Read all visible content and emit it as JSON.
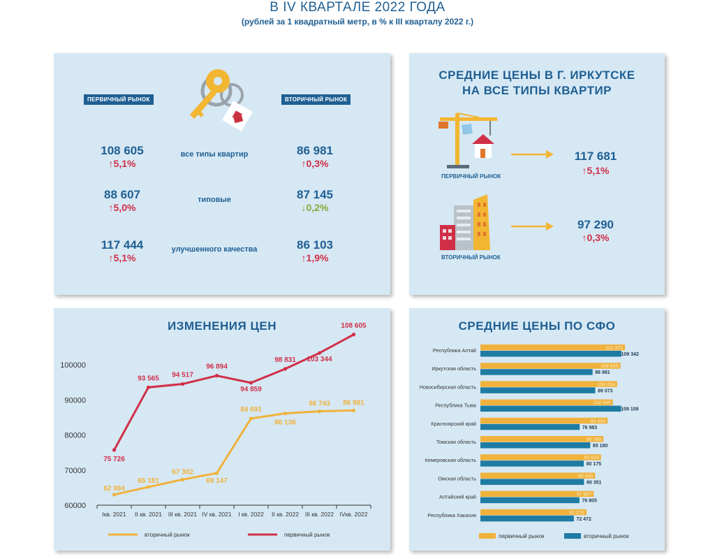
{
  "header": {
    "title": "В IV КВАРТАЛЕ 2022 ГОДА",
    "subtitle": "(рублей за 1 квадратный метр, в % к III кварталу 2022 г.)"
  },
  "panel1": {
    "primary_label": "ПЕРВИЧНЫЙ РЫНОК",
    "secondary_label": "ВТОРИЧНЫЙ РЫНОК",
    "rows": [
      {
        "label": "все типы квартир",
        "primary_value": "108 605",
        "primary_change": "↑5,1%",
        "secondary_value": "86 981",
        "secondary_change": "↑0,3%"
      },
      {
        "label": "типовые",
        "primary_value": "88 607",
        "primary_change": "↑5,0%",
        "secondary_value": "87 145",
        "secondary_change": "↓0,2%"
      },
      {
        "label": "улучшенного качества",
        "primary_value": "117 444",
        "primary_change": "↑5,1%",
        "secondary_value": "86 103",
        "secondary_change": "↑1,9%"
      }
    ]
  },
  "panel2": {
    "title_line1": "СРЕДНИЕ  ЦЕНЫ  В  Г.  ИРКУТСКЕ",
    "title_line2": "НА ВСЕ ТИПЫ КВАРТИР",
    "primary": {
      "label": "ПЕРВИЧНЫЙ РЫНОК",
      "value": "117 681",
      "change": "↑5,1%"
    },
    "secondary": {
      "label": "ВТОРИЧНЫЙ РЫНОК",
      "value": "97 290",
      "change": "↑0,3%"
    }
  },
  "chart_data": [
    {
      "type": "line",
      "title": "ИЗМЕНЕНИЯ ЦЕН",
      "categories": [
        "Iкв. 2021",
        "II кв. 2021",
        "III кв. 2021",
        "IV кв. 2021",
        "I кв. 2022",
        "II кв. 2022",
        "III кв. 2022",
        "IVкв. 2022"
      ],
      "ylim": [
        60000,
        100000
      ],
      "yticks": [
        60000,
        70000,
        80000,
        90000,
        100000
      ],
      "series": [
        {
          "name": "первичный рынок",
          "color": "#d12f48",
          "values": [
            75726,
            93565,
            94517,
            96894,
            94859,
            98831,
            103344,
            108605
          ],
          "labels": [
            "75 726",
            "93 565",
            "94 517",
            "96 894",
            "94 859",
            "98 831",
            "103 344",
            "108 605"
          ]
        },
        {
          "name": "вторичный рынок",
          "color": "#f0b23c",
          "values": [
            62994,
            65181,
            67302,
            69147,
            84691,
            86136,
            86743,
            86981
          ],
          "labels": [
            "62 994",
            "65 181",
            "67 302",
            "69 147",
            "84 691",
            "86 136",
            "86 743",
            "86 981"
          ]
        }
      ],
      "legend": "bottom"
    },
    {
      "type": "bar",
      "orientation": "horizontal",
      "title": "СРЕДНИЕ ЦЕНЫ ПО СФО",
      "categories": [
        "Республика Алтай",
        "Иркутская область",
        "Новосибирская область",
        "Республика Тыва",
        "Красноярский край",
        "Томская область",
        "Кемеровская область",
        "Омская область",
        "Алтайский край",
        "Республика Хакасия"
      ],
      "xlim": [
        0,
        112071
      ],
      "series": [
        {
          "name": "первичный рынок",
          "color": "#f0b23c",
          "values": [
            112071,
            108605,
            106054,
            102666,
            98630,
            95369,
            93534,
            88940,
            87867,
            82270
          ],
          "labels": [
            "112 071",
            "108 605",
            "106 054",
            "102 666",
            "98 630",
            "95 369",
            "93 534",
            "88 940",
            "87 867",
            "82 270"
          ]
        },
        {
          "name": "вторичный рынок",
          "color": "#1e7ca3",
          "values": [
            109342,
            86981,
            89073,
            109109,
            76983,
            85190,
            80175,
            80351,
            76805,
            72472
          ],
          "labels": [
            "109 342",
            "86 981",
            "89 073",
            "109 109",
            "76 983",
            "85 190",
            "80 175",
            "80 351",
            "76 805",
            "72 472"
          ]
        }
      ],
      "legend": "bottom"
    }
  ]
}
